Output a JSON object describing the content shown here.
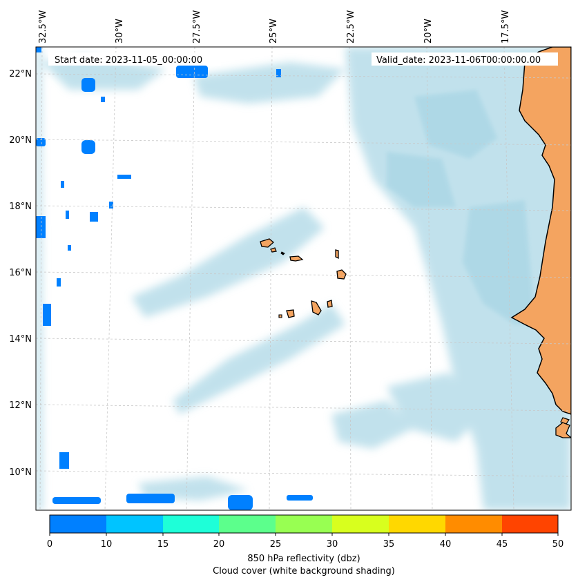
{
  "map": {
    "start_date_text": "Start date: 2023-11-05_00:00:00",
    "valid_date_text": "Valid_date: 2023-11-06T00:00:00.00",
    "longitude_labels": [
      "32.5°W",
      "30°W",
      "27.5°W",
      "25°W",
      "22.5°W",
      "20°W",
      "17.5°W"
    ],
    "latitude_labels": [
      "22°N",
      "20°N",
      "18°N",
      "16°N",
      "14°N",
      "12°N",
      "10°N"
    ],
    "colors": {
      "land": "#f4a460",
      "cloud": "#add8e6",
      "coastline": "#000000",
      "gridline": "#c8c8c8"
    }
  },
  "colorbar": {
    "tick_labels": [
      "0",
      "5",
      "10",
      "15",
      "20",
      "25",
      "30",
      "35",
      "40",
      "45",
      "50"
    ],
    "colors": [
      "#0080ff",
      "#00c4ff",
      "#1effd8",
      "#5cff8c",
      "#98ff52",
      "#d8ff1e",
      "#ffd800",
      "#ff8c00",
      "#ff4400"
    ],
    "label_line1": "850 hPa reflectivity (dbz)",
    "label_line2": "Cloud cover (white background shading)"
  }
}
